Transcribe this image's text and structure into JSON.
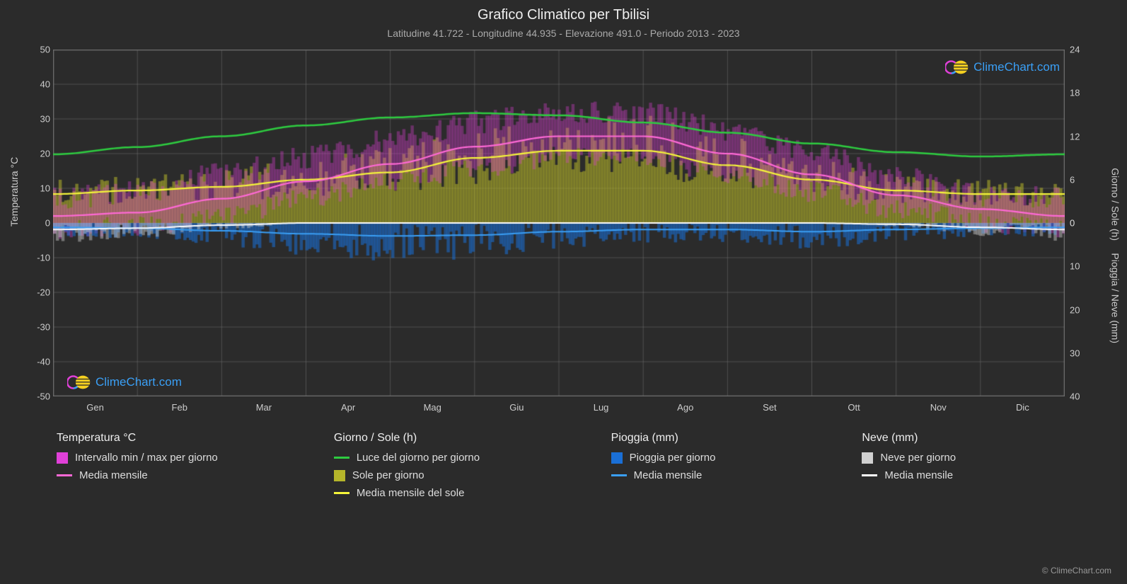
{
  "title": "Grafico Climatico per Tbilisi",
  "subtitle": "Latitudine 41.722 - Longitudine 44.935 - Elevazione 491.0 - Periodo 2013 - 2023",
  "logo_text": "ClimeChart.com",
  "copyright": "© ClimeChart.com",
  "axes": {
    "left_label": "Temperatura °C",
    "right_top_label": "Giorno / Sole (h)",
    "right_bottom_label": "Pioggia / Neve (mm)",
    "y_left": {
      "min": -50,
      "max": 50,
      "step": 10,
      "ticks": [
        -50,
        -40,
        -30,
        -20,
        -10,
        0,
        10,
        20,
        30,
        40,
        50
      ]
    },
    "y_right_top": {
      "min": 0,
      "max": 24,
      "step": 6,
      "ticks": [
        0,
        6,
        12,
        18,
        24
      ]
    },
    "y_right_bottom": {
      "min": 0,
      "max": 40,
      "step": 10,
      "ticks": [
        0,
        10,
        20,
        30,
        40
      ]
    },
    "x_labels": [
      "Gen",
      "Feb",
      "Mar",
      "Apr",
      "Mag",
      "Giu",
      "Lug",
      "Ago",
      "Set",
      "Ott",
      "Nov",
      "Dic"
    ]
  },
  "colors": {
    "background": "#2b2b2b",
    "grid": "#707070",
    "text": "#cccccc",
    "temp_range": "#e040d8",
    "temp_mean": "#ff69d6",
    "daylight": "#2ecc40",
    "sun_band": "#b5b52a",
    "sun_mean": "#f5f53a",
    "rain_bar": "#1a6fd6",
    "rain_mean": "#3a9ff5",
    "snow_bar": "#d0d0d0",
    "snow_mean": "#ffffff"
  },
  "series": {
    "temp_min_monthly": [
      -2,
      -1,
      2,
      7,
      12,
      16,
      19,
      19,
      14,
      9,
      4,
      0
    ],
    "temp_max_monthly": [
      7,
      9,
      14,
      19,
      24,
      29,
      32,
      32,
      27,
      20,
      13,
      8
    ],
    "temp_mean": [
      2,
      3,
      7,
      12,
      17,
      22,
      25,
      25,
      20,
      14,
      8,
      4
    ],
    "daylight_hours": [
      9.5,
      10.5,
      12,
      13.5,
      14.6,
      15.2,
      14.9,
      13.9,
      12.5,
      11,
      9.8,
      9.2
    ],
    "sun_hours_mean": [
      4,
      4.5,
      5,
      6,
      7,
      9,
      10,
      10,
      8,
      6,
      4.5,
      4
    ],
    "rain_mean_mm": [
      1.0,
      1.2,
      1.8,
      2.5,
      3.0,
      2.8,
      2.0,
      1.5,
      1.5,
      2.0,
      1.5,
      1.2
    ],
    "snow_mean_mm": [
      1.5,
      1.2,
      0.5,
      0,
      0,
      0,
      0,
      0,
      0,
      0,
      0.3,
      1.0
    ]
  },
  "legend": {
    "col1_title": "Temperatura °C",
    "col1_items": [
      {
        "label": "Intervallo min / max per giorno",
        "swatch": "block",
        "color": "#e040d8"
      },
      {
        "label": "Media mensile",
        "swatch": "line",
        "color": "#ff69d6"
      }
    ],
    "col2_title": "Giorno / Sole (h)",
    "col2_items": [
      {
        "label": "Luce del giorno per giorno",
        "swatch": "line",
        "color": "#2ecc40"
      },
      {
        "label": "Sole per giorno",
        "swatch": "block",
        "color": "#b5b52a"
      },
      {
        "label": "Media mensile del sole",
        "swatch": "line",
        "color": "#f5f53a"
      }
    ],
    "col3_title": "Pioggia (mm)",
    "col3_items": [
      {
        "label": "Pioggia per giorno",
        "swatch": "block",
        "color": "#1a6fd6"
      },
      {
        "label": "Media mensile",
        "swatch": "line",
        "color": "#3a9ff5"
      }
    ],
    "col4_title": "Neve (mm)",
    "col4_items": [
      {
        "label": "Neve per giorno",
        "swatch": "block",
        "color": "#d0d0d0"
      },
      {
        "label": "Media mensile",
        "swatch": "line",
        "color": "#ffffff"
      }
    ]
  }
}
